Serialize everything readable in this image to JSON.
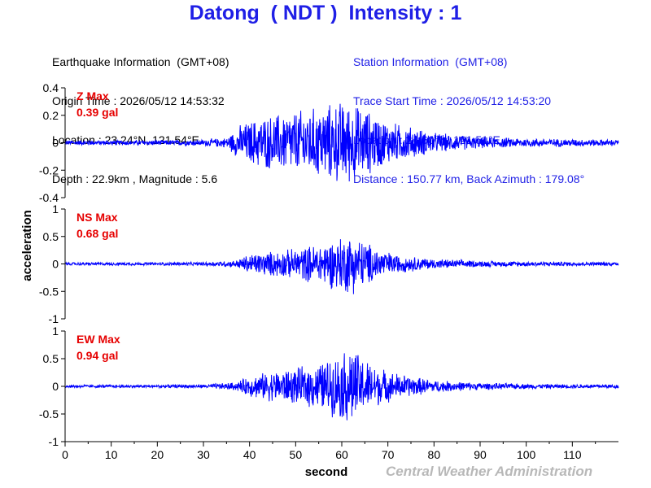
{
  "header": {
    "title": "Datong  ( NDT )  Intensity : 1"
  },
  "earthquake_info": {
    "heading": "Earthquake Information  (GMT+08)",
    "origin_time": "Origin Time : 2026/05/12 14:53:32",
    "location": "Location : 23.24°N, 121.54°E",
    "depth_magnitude": "Depth : 22.9km , Magnitude : 5.6"
  },
  "station_info": {
    "heading": "Station Information  (GMT+08)",
    "trace_start": "Trace Start Time : 2026/05/12 14:53:20",
    "location": "Location : 24.60°N, 121.51°E",
    "distance": "Distance : 150.77 km, Back Azimuth : 179.08°"
  },
  "footer": {
    "credit": "Central Weather Administration"
  },
  "colors": {
    "trace": "#0000ff",
    "max_label": "#e60000",
    "title": "#1f1fe6"
  },
  "chart_data": [
    {
      "type": "line",
      "component": "Z",
      "max_label": "Z Max",
      "max_value": "0.39 gal",
      "ylabel": "acceleration",
      "xlim": [
        0,
        120
      ],
      "ylim": [
        -0.4,
        0.4
      ],
      "yticks": [
        0.4,
        0.2,
        0,
        -0.2,
        -0.4
      ],
      "ytick_labels": [
        "0.4",
        "0.2",
        "0",
        "-0.2",
        "-0.4"
      ],
      "envelope": {
        "time": [
          0,
          10,
          20,
          30,
          35,
          38,
          42,
          48,
          55,
          60,
          63,
          66,
          70,
          80,
          90,
          100,
          110,
          120
        ],
        "amplitude": [
          0.02,
          0.02,
          0.02,
          0.025,
          0.04,
          0.14,
          0.2,
          0.24,
          0.28,
          0.33,
          0.3,
          0.25,
          0.17,
          0.08,
          0.045,
          0.035,
          0.03,
          0.025
        ]
      }
    },
    {
      "type": "line",
      "component": "NS",
      "max_label": "NS Max",
      "max_value": "0.68 gal",
      "ylabel": "acceleration",
      "xlim": [
        0,
        120
      ],
      "ylim": [
        -1,
        1
      ],
      "yticks": [
        1,
        0.5,
        0,
        -0.5,
        -1
      ],
      "ytick_labels": [
        "1",
        "0.5",
        "0",
        "-0.5",
        "-1"
      ],
      "envelope": {
        "time": [
          0,
          10,
          20,
          30,
          37,
          40,
          45,
          50,
          55,
          60,
          62,
          65,
          68,
          72,
          80,
          90,
          100,
          110,
          120
        ],
        "amplitude": [
          0.03,
          0.03,
          0.03,
          0.035,
          0.07,
          0.2,
          0.25,
          0.3,
          0.4,
          0.55,
          0.6,
          0.45,
          0.3,
          0.18,
          0.1,
          0.06,
          0.05,
          0.04,
          0.04
        ]
      }
    },
    {
      "type": "line",
      "component": "EW",
      "max_label": "EW Max",
      "max_value": "0.94 gal",
      "ylabel": "acceleration",
      "xlabel": "second",
      "xlim": [
        0,
        120
      ],
      "ylim": [
        -1,
        1
      ],
      "yticks": [
        1,
        0.5,
        0,
        -0.5,
        -1
      ],
      "ytick_labels": [
        "1",
        "0.5",
        "0",
        "-0.5",
        "-1"
      ],
      "xticks": [
        0,
        10,
        20,
        30,
        40,
        50,
        60,
        70,
        80,
        90,
        100,
        110
      ],
      "xtick_labels": [
        "0",
        "10",
        "20",
        "30",
        "40",
        "50",
        "60",
        "70",
        "80",
        "90",
        "100",
        "110"
      ],
      "envelope": {
        "time": [
          0,
          10,
          20,
          30,
          37,
          40,
          45,
          50,
          55,
          60,
          62,
          64,
          67,
          70,
          75,
          80,
          90,
          100,
          110,
          120
        ],
        "amplitude": [
          0.03,
          0.03,
          0.03,
          0.035,
          0.08,
          0.2,
          0.3,
          0.35,
          0.45,
          0.65,
          0.8,
          0.6,
          0.42,
          0.3,
          0.2,
          0.12,
          0.07,
          0.05,
          0.04,
          0.04
        ]
      }
    }
  ]
}
